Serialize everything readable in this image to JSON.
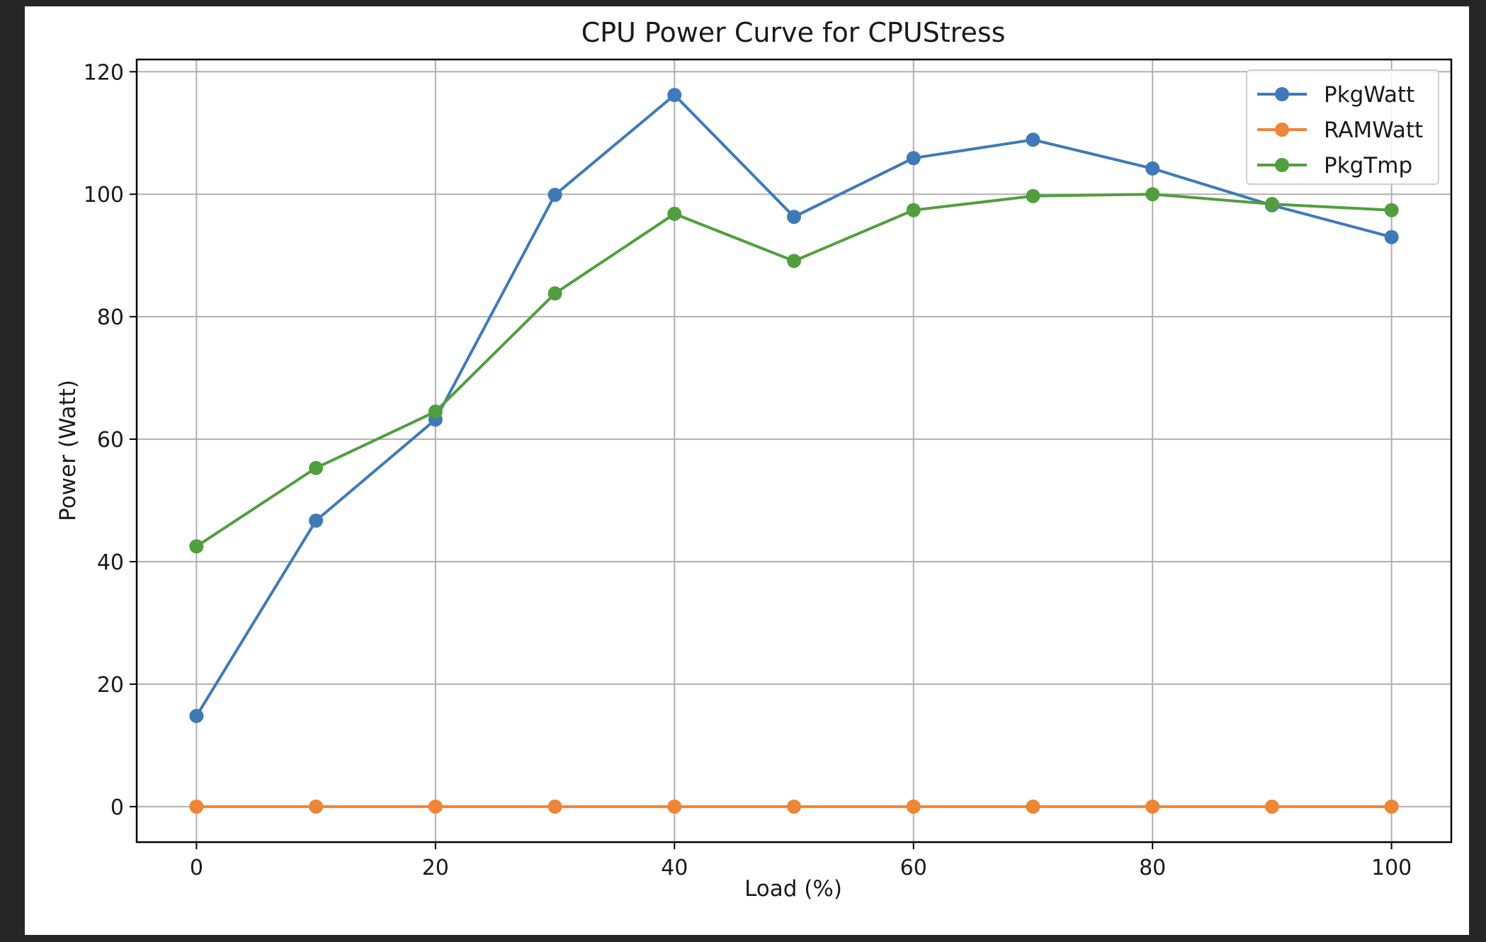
{
  "chart_data": {
    "type": "line",
    "title": "CPU Power Curve for CPUStress",
    "xlabel": "Load (%)",
    "ylabel": "Power (Watt)",
    "x": [
      0,
      10,
      20,
      30,
      40,
      50,
      60,
      70,
      80,
      90,
      100
    ],
    "xlim": [
      -5,
      105
    ],
    "ylim": [
      -5.8,
      122
    ],
    "xticks": [
      0,
      20,
      40,
      60,
      80,
      100
    ],
    "yticks": [
      0,
      20,
      40,
      60,
      80,
      100,
      120
    ],
    "grid": true,
    "legend_position": "top-right",
    "series": [
      {
        "name": "PkgWatt",
        "color": "#3f7ab8",
        "values": [
          14.8,
          46.7,
          63.2,
          99.9,
          116.2,
          96.3,
          105.9,
          108.9,
          104.2,
          98.2,
          93.0
        ]
      },
      {
        "name": "RAMWatt",
        "color": "#ef8536",
        "values": [
          0,
          0,
          0,
          0,
          0,
          0,
          0,
          0,
          0,
          0,
          0
        ]
      },
      {
        "name": "PkgTmp",
        "color": "#519e3e",
        "values": [
          42.5,
          55.3,
          64.5,
          83.8,
          96.8,
          89.1,
          97.4,
          99.7,
          100.0,
          98.4,
          97.4
        ]
      }
    ]
  }
}
